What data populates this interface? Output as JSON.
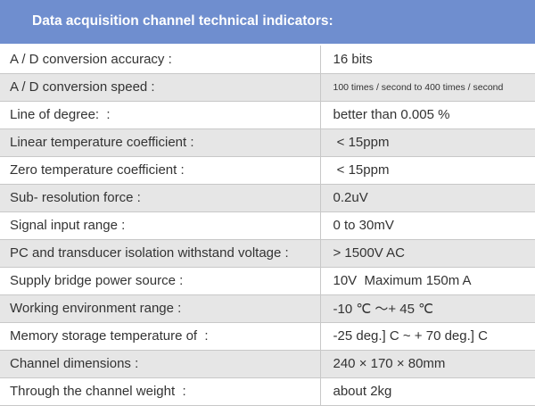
{
  "header": {
    "title": "Data acquisition channel technical indicators:",
    "background_color": "#6f8ecf",
    "text_color": "#ffffff"
  },
  "table": {
    "stripe_color": "#e6e6e6",
    "rows": [
      {
        "parameter": "A / D conversion accuracy :",
        "value": "16 bits"
      },
      {
        "parameter": "A / D conversion speed :",
        "value": "100 times / second to 400 times / second"
      },
      {
        "parameter": "Line of degree:  :",
        "value": "better than 0.005 %"
      },
      {
        "parameter": "Linear temperature coefficient :",
        "value": " < 15ppm"
      },
      {
        "parameter": "Zero temperature coefficient :",
        "value": " < 15ppm"
      },
      {
        "parameter": "Sub- resolution force :",
        "value": "0.2uV"
      },
      {
        "parameter": "Signal input range :",
        "value": "0 to 30mV"
      },
      {
        "parameter": "PC and transducer isolation withstand voltage :",
        "value": "> 1500V AC"
      },
      {
        "parameter": "Supply bridge power source :",
        "value": "10V  Maximum 150m A"
      },
      {
        "parameter": "Working environment range :",
        "value": "-10 ℃ 〜+ 45 ℃"
      },
      {
        "parameter": "Memory storage temperature of  :",
        "value": "-25 deg.] C ~ + 70 deg.] C"
      },
      {
        "parameter": "Channel dimensions :",
        "value": "240 × 170 × 80mm"
      },
      {
        "parameter": "Through the channel weight  :",
        "value": "about 2kg"
      }
    ]
  }
}
